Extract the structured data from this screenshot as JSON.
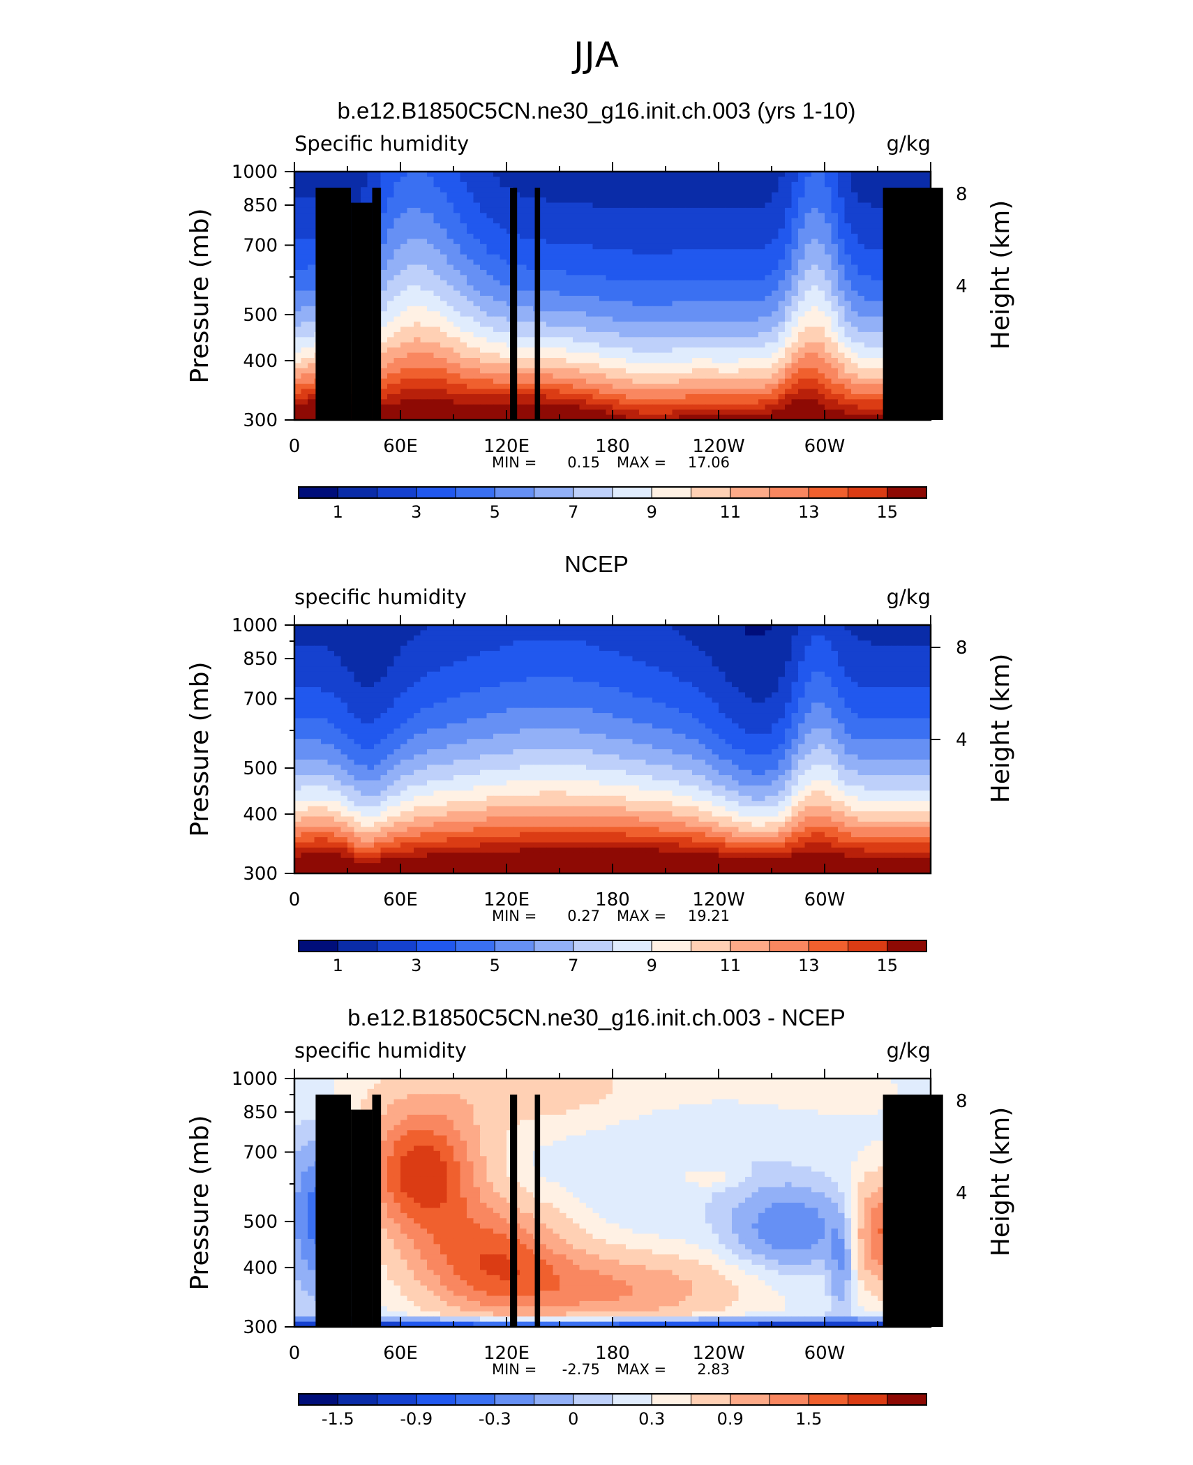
{
  "page": {
    "title": "JJA"
  },
  "chart_data": [
    {
      "type": "heatmap",
      "title": "b.e12.B1850C5CN.ne30_g16.init.ch.003 (yrs 1-10)",
      "left_label": "Specific humidity",
      "right_label": "g/kg",
      "ylabel": "Pressure (mb)",
      "ylabel_right": "Height (km)",
      "x_ticks": [
        "0",
        "60E",
        "120E",
        "180",
        "120W",
        "60W"
      ],
      "y_ticks": [
        "300",
        "400",
        "500",
        "700",
        "850",
        "1000"
      ],
      "y_ticks_right": [
        "8",
        "4"
      ],
      "min_label": "MIN =",
      "min_value": "0.15",
      "max_label": "MAX =",
      "max_value": "17.06",
      "colorbar_labels": [
        "1",
        "3",
        "5",
        "7",
        "9",
        "11",
        "13",
        "15"
      ],
      "ylim": [
        1000,
        300
      ],
      "field": "model"
    },
    {
      "type": "heatmap",
      "title": "NCEP",
      "left_label": "specific humidity",
      "right_label": "g/kg",
      "ylabel": "Pressure (mb)",
      "ylabel_right": "Height (km)",
      "x_ticks": [
        "0",
        "60E",
        "120E",
        "180",
        "120W",
        "60W"
      ],
      "y_ticks": [
        "300",
        "400",
        "500",
        "700",
        "850",
        "1000"
      ],
      "y_ticks_right": [
        "8",
        "4"
      ],
      "min_label": "MIN =",
      "min_value": "0.27",
      "max_label": "MAX =",
      "max_value": "19.21",
      "colorbar_labels": [
        "1",
        "3",
        "5",
        "7",
        "9",
        "11",
        "13",
        "15"
      ],
      "ylim": [
        1000,
        300
      ],
      "field": "obs"
    },
    {
      "type": "heatmap",
      "title": "b.e12.B1850C5CN.ne30_g16.init.ch.003 - NCEP",
      "left_label": "specific humidity",
      "right_label": "g/kg",
      "ylabel": "Pressure (mb)",
      "ylabel_right": "Height (km)",
      "x_ticks": [
        "0",
        "60E",
        "120E",
        "180",
        "120W",
        "60W"
      ],
      "y_ticks": [
        "300",
        "400",
        "500",
        "700",
        "850",
        "1000"
      ],
      "y_ticks_right": [
        "8",
        "4"
      ],
      "min_label": "MIN =",
      "min_value": "-2.75",
      "max_label": "MAX =",
      "max_value": "2.83",
      "colorbar_labels": [
        "-1.5",
        "-0.9",
        "-0.3",
        "0",
        "0.3",
        "0.9",
        "1.5"
      ],
      "ylim": [
        1000,
        300
      ],
      "field": "diff"
    }
  ],
  "colors": {
    "palette": [
      "#000e7a",
      "#0a2ca8",
      "#1541cf",
      "#2158ee",
      "#3a70f2",
      "#6690f4",
      "#92b0f7",
      "#bed0fa",
      "#e0ecfd",
      "#fff1e4",
      "#ffd0b4",
      "#fdaa88",
      "#f98760",
      "#f0602e",
      "#db3c14",
      "#b8200a",
      "#8e0a04"
    ],
    "terrain": "#000000"
  }
}
